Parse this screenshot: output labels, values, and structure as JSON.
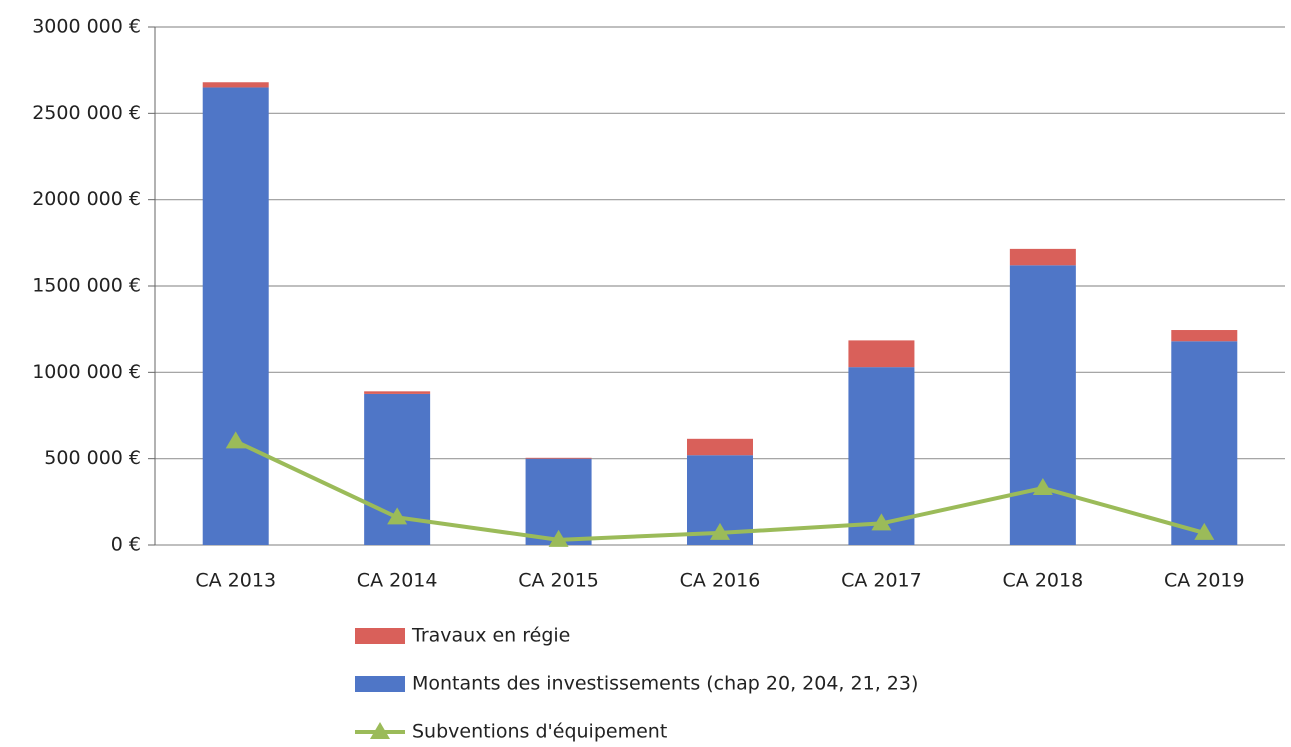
{
  "chart_data": {
    "type": "bar",
    "categories": [
      "CA 2013",
      "CA 2014",
      "CA 2015",
      "CA 2016",
      "CA 2017",
      "CA 2018",
      "CA 2019"
    ],
    "series": [
      {
        "name": "Travaux en régie",
        "type": "bar",
        "color": "#d9605a",
        "values": [
          30000,
          15000,
          5000,
          95000,
          155000,
          95000,
          65000
        ]
      },
      {
        "name": "Montants des investissements (chap 20, 204, 21, 23)",
        "type": "bar",
        "color": "#4f76c7",
        "values": [
          2650000,
          875000,
          500000,
          520000,
          1030000,
          1620000,
          1180000
        ]
      },
      {
        "name": "Subventions d'équipement",
        "type": "line",
        "color": "#9bbb59",
        "values": [
          600000,
          160000,
          30000,
          70000,
          125000,
          330000,
          70000
        ]
      }
    ],
    "ylim": [
      0,
      3000000
    ],
    "yticks": [
      {
        "value": 0,
        "label": "0 €"
      },
      {
        "value": 500000,
        "label": "500 000 €"
      },
      {
        "value": 1000000,
        "label": "1000 000 €"
      },
      {
        "value": 1500000,
        "label": "1500 000 €"
      },
      {
        "value": 2000000,
        "label": "2000 000 €"
      },
      {
        "value": 2500000,
        "label": "2500 000 €"
      },
      {
        "value": 3000000,
        "label": "3000 000 €"
      }
    ],
    "grid": true,
    "legend": "bottom"
  }
}
